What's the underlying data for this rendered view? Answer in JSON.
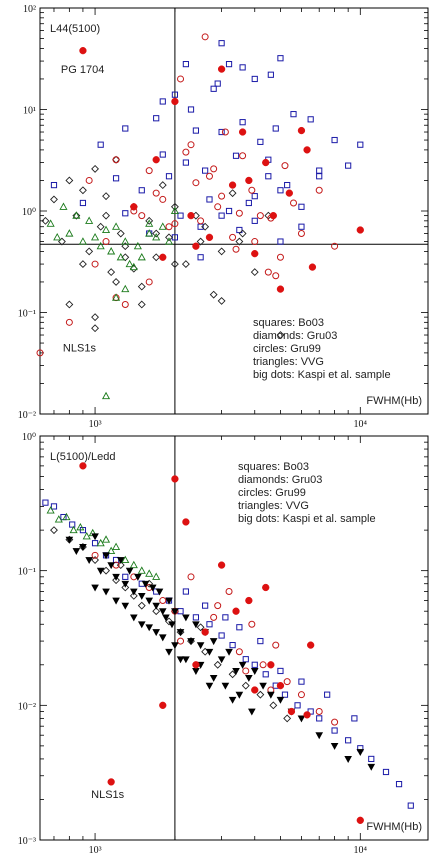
{
  "chart_data": [
    {
      "type": "scatter",
      "title": "",
      "panel_label": "L44(5100)",
      "xlabel": "FWHM(Hb)",
      "ylabel": "",
      "x_scale": "log",
      "y_scale": "log",
      "xlim": [
        620,
        18000
      ],
      "ylim": [
        0.01,
        100
      ],
      "x_ticks": [
        1000,
        10000
      ],
      "x_tick_labels": [
        "10³",
        "10⁴"
      ],
      "y_ticks": [
        0.01,
        0.1,
        1,
        10,
        100
      ],
      "y_tick_labels": [
        "10⁻²",
        "10⁻¹",
        "10⁰",
        "10¹",
        "10²"
      ],
      "grid": false,
      "reference_lines": {
        "x": 2000,
        "y": 0.47
      },
      "annotations": [
        {
          "text": "PG 1704",
          "x": 900,
          "y": 25
        },
        {
          "text": "NLS1s",
          "x": 900,
          "y": 0.045
        }
      ],
      "legend": [
        "squares: Bo03",
        "diamonds: Gru03",
        "circles: Gru99",
        "triangles: VVG",
        "big dots: Kaspi et al. sample"
      ],
      "series": [
        {
          "name": "squares: Bo03",
          "marker": "square",
          "color": "#1a1aa8",
          "x": [
            700,
            900,
            1050,
            1200,
            1300,
            1500,
            1700,
            1800,
            1900,
            2000,
            2100,
            2200,
            2300,
            2400,
            2500,
            2600,
            2700,
            2900,
            3000,
            3200,
            3400,
            3600,
            3800,
            4000,
            4200,
            4500,
            4800,
            5000,
            5300,
            5600,
            6000,
            6500,
            7000,
            8000,
            9000,
            10000,
            1300,
            1600,
            2000,
            2500,
            3000,
            3500,
            4000,
            4500,
            5000,
            6000,
            7000,
            3000,
            3200,
            4000,
            5000,
            2200,
            2800,
            3600,
            4600,
            1800
          ],
          "y": [
            1.8,
            1.2,
            4.5,
            2.1,
            6.5,
            1.6,
            8.2,
            3.6,
            2.2,
            14,
            0.9,
            3.0,
            10,
            6.2,
            0.7,
            2.5,
            1.3,
            18,
            6,
            1.0,
            3.5,
            7.5,
            1.2,
            0.8,
            4.8,
            2.2,
            6.5,
            0.5,
            1.8,
            9,
            1.1,
            8,
            2.5,
            5,
            2.8,
            4.5,
            0.95,
            0.6,
            0.55,
            0.35,
            0.9,
            0.65,
            1.4,
            3.2,
            1.6,
            0.7,
            2.2,
            45,
            28,
            20,
            32,
            28,
            16,
            26,
            22,
            12
          ]
        },
        {
          "name": "diamonds: Gru03",
          "marker": "diamond",
          "color": "#222222",
          "x": [
            650,
            700,
            750,
            800,
            850,
            900,
            950,
            1000,
            1050,
            1100,
            1150,
            1200,
            1250,
            1300,
            1400,
            1500,
            1600,
            1700,
            1800,
            1900,
            2000,
            2200,
            2400,
            2600,
            2800,
            3000,
            3300,
            3600,
            4000,
            4500,
            5000,
            800,
            900,
            1000,
            1100,
            1200,
            1300,
            1500,
            1700,
            2000,
            2500,
            3000,
            3500,
            1000,
            1400
          ],
          "y": [
            0.8,
            1.3,
            0.5,
            2.0,
            0.9,
            1.6,
            0.4,
            2.6,
            0.7,
            1.4,
            0.25,
            3.2,
            0.6,
            0.45,
            1.1,
            0.18,
            0.8,
            0.35,
            1.8,
            0.55,
            1.1,
            0.3,
            0.9,
            0.7,
            0.15,
            0.4,
            1.5,
            0.6,
            0.25,
            0.9,
            0.06,
            0.12,
            0.3,
            0.07,
            0.9,
            0.2,
            0.35,
            0.12,
            0.6,
            0.3,
            0.5,
            0.13,
            0.5,
            0.09,
            0.27
          ]
        },
        {
          "name": "circles: Gru99",
          "marker": "circle",
          "color": "#c41a1a",
          "x": [
            620,
            800,
            950,
            1100,
            1200,
            1300,
            1500,
            1600,
            1700,
            1900,
            2100,
            2300,
            2500,
            2700,
            2900,
            3100,
            3300,
            3600,
            3900,
            4200,
            4500,
            4800,
            5200,
            5600,
            6000,
            7000,
            8000,
            1400,
            1800,
            2000,
            2400,
            3000,
            3500,
            4000,
            5000,
            1200,
            1600,
            2200,
            2800,
            3400,
            2600,
            1000,
            4600
          ],
          "y": [
            0.04,
            0.08,
            2.0,
            0.5,
            3.2,
            0.12,
            0.9,
            2.5,
            1.5,
            0.7,
            20,
            4.5,
            0.8,
            2.2,
            1.1,
            6.0,
            0.55,
            3.5,
            1.6,
            0.9,
            0.25,
            0.23,
            2.8,
            1.2,
            0.6,
            1.6,
            0.45,
            1.0,
            1.3,
            0.75,
            1.9,
            1.4,
            0.95,
            0.5,
            0.35,
            0.14,
            0.2,
            3.8,
            2.6,
            0.42,
            52,
            0.3,
            0.85
          ]
        },
        {
          "name": "triangles: VVG",
          "marker": "triangle",
          "color": "#1a7a1a",
          "x": [
            680,
            720,
            760,
            800,
            850,
            900,
            950,
            1000,
            1050,
            1100,
            1150,
            1200,
            1250,
            1300,
            1350,
            1400,
            1450,
            1500,
            1600,
            1700,
            1800,
            1900,
            2000,
            1100,
            1200,
            1300,
            1600
          ],
          "y": [
            0.75,
            0.55,
            1.1,
            0.6,
            0.9,
            0.5,
            0.8,
            0.55,
            0.45,
            0.65,
            0.4,
            0.7,
            0.35,
            0.5,
            0.3,
            0.28,
            0.45,
            0.35,
            0.6,
            0.55,
            0.7,
            0.5,
            1.0,
            0.015,
            0.14,
            0.17,
            0.75
          ]
        },
        {
          "name": "big dots: Kaspi et al. sample",
          "marker": "dot",
          "color": "#dd1111",
          "x": [
            900,
            1400,
            1700,
            2000,
            2300,
            2700,
            3000,
            3300,
            3600,
            4000,
            4400,
            5000,
            5400,
            6000,
            6600,
            10000,
            2400,
            3800,
            4700,
            6300,
            1800
          ],
          "y": [
            38,
            1.1,
            3.2,
            12,
            0.9,
            0.55,
            25,
            1.8,
            6.0,
            0.38,
            3.0,
            0.17,
            1.5,
            6.2,
            0.28,
            0.65,
            0.45,
            2.0,
            0.9,
            4.0,
            0.35
          ]
        }
      ]
    },
    {
      "type": "scatter",
      "title": "",
      "panel_label": "L(5100)/Ledd",
      "xlabel": "FWHM(Hb)",
      "ylabel": "",
      "x_scale": "log",
      "y_scale": "log",
      "xlim": [
        620,
        18000
      ],
      "ylim": [
        0.001,
        1
      ],
      "x_ticks": [
        1000,
        10000
      ],
      "x_tick_labels": [
        "10³",
        "10⁴"
      ],
      "y_ticks": [
        0.001,
        0.01,
        0.1,
        1
      ],
      "y_tick_labels": [
        "10⁻³",
        "10⁻²",
        "10⁻¹",
        "10⁰"
      ],
      "grid": false,
      "reference_lines": {
        "x": 2000
      },
      "annotations": [
        {
          "text": "NLS1s",
          "x": 1150,
          "y": 0.0022
        }
      ],
      "legend": [
        "squares: Bo03",
        "diamonds: Gru03",
        "circles: Gru99",
        "triangles: VVG",
        "big dots: Kaspi et al. sample"
      ],
      "series": [
        {
          "name": "squares: Bo03",
          "marker": "square",
          "color": "#1a1aa8",
          "x": [
            650,
            700,
            760,
            820,
            900,
            1000,
            1100,
            1200,
            1300,
            1500,
            1700,
            1900,
            2100,
            2400,
            2700,
            3000,
            3300,
            3700,
            4000,
            4400,
            4800,
            5200,
            5800,
            6500,
            7000,
            8000,
            9000,
            10000,
            11000,
            12500,
            14000,
            15500,
            2200,
            2600,
            3100,
            3500,
            4200,
            5000,
            6000,
            7500,
            9500
          ],
          "y": [
            0.32,
            0.3,
            0.25,
            0.22,
            0.2,
            0.16,
            0.13,
            0.12,
            0.09,
            0.08,
            0.07,
            0.06,
            0.05,
            0.045,
            0.04,
            0.033,
            0.028,
            0.022,
            0.02,
            0.017,
            0.014,
            0.012,
            0.01,
            0.009,
            0.008,
            0.0065,
            0.0055,
            0.0048,
            0.004,
            0.0032,
            0.0026,
            0.0018,
            0.07,
            0.055,
            0.045,
            0.038,
            0.03,
            0.018,
            0.015,
            0.012,
            0.008
          ]
        },
        {
          "name": "diamonds: Gru03",
          "marker": "diamond",
          "color": "#222222",
          "x": [
            700,
            800,
            900,
            1000,
            1100,
            1200,
            1300,
            1400,
            1500,
            1700,
            1900,
            2100,
            2300,
            2600,
            2900,
            3300,
            3700,
            4200,
            4700,
            5300,
            1250,
            1600,
            2000,
            2500
          ],
          "y": [
            0.2,
            0.17,
            0.15,
            0.12,
            0.1,
            0.085,
            0.075,
            0.065,
            0.055,
            0.05,
            0.042,
            0.035,
            0.03,
            0.025,
            0.02,
            0.017,
            0.014,
            0.012,
            0.01,
            0.008,
            0.11,
            0.08,
            0.05,
            0.038
          ]
        },
        {
          "name": "circles: Gru99",
          "marker": "circle",
          "color": "#c41a1a",
          "x": [
            1000,
            1200,
            1400,
            1600,
            1800,
            2000,
            2300,
            2600,
            2900,
            3200,
            3500,
            3900,
            4300,
            4800,
            5300,
            6000,
            7000,
            8000,
            2100,
            2800,
            3700,
            4600
          ],
          "y": [
            0.13,
            0.11,
            0.09,
            0.075,
            0.06,
            0.05,
            0.09,
            0.035,
            0.055,
            0.07,
            0.025,
            0.04,
            0.02,
            0.028,
            0.015,
            0.012,
            0.009,
            0.0075,
            0.03,
            0.045,
            0.018,
            0.013
          ]
        },
        {
          "name": "triangles: VVG",
          "marker": "triangle",
          "color": "#1a7a1a",
          "x": [
            680,
            730,
            780,
            830,
            880,
            930,
            980,
            1050,
            1100,
            1150,
            1200,
            1300,
            1400,
            1500,
            1600,
            1700
          ],
          "y": [
            0.28,
            0.24,
            0.25,
            0.2,
            0.21,
            0.18,
            0.19,
            0.16,
            0.17,
            0.14,
            0.15,
            0.12,
            0.11,
            0.1,
            0.095,
            0.09
          ]
        },
        {
          "name": "",
          "marker": "down-triangle",
          "color": "#000000",
          "x": [
            800,
            850,
            900,
            950,
            1000,
            1050,
            1100,
            1150,
            1200,
            1250,
            1300,
            1350,
            1400,
            1450,
            1500,
            1550,
            1600,
            1650,
            1700,
            1750,
            1800,
            1850,
            1900,
            1950,
            2000,
            2100,
            2200,
            2300,
            2400,
            2500,
            2600,
            2700,
            2800,
            3000,
            3200,
            3400,
            3600,
            3800,
            4000,
            4300,
            4600,
            5000,
            5500,
            6000,
            7000,
            8000,
            9000,
            10000,
            11000,
            1000,
            1200,
            1400,
            1600,
            1800,
            2000,
            2200,
            2500,
            2800,
            3100,
            3500,
            1100,
            1300,
            1500,
            1700,
            1900,
            2100,
            2400,
            2700,
            3300,
            3900
          ],
          "y": [
            0.17,
            0.14,
            0.15,
            0.12,
            0.18,
            0.1,
            0.13,
            0.11,
            0.09,
            0.12,
            0.08,
            0.1,
            0.07,
            0.09,
            0.065,
            0.08,
            0.06,
            0.075,
            0.055,
            0.07,
            0.05,
            0.045,
            0.06,
            0.04,
            0.05,
            0.035,
            0.045,
            0.03,
            0.04,
            0.028,
            0.035,
            0.025,
            0.03,
            0.022,
            0.025,
            0.018,
            0.02,
            0.016,
            0.018,
            0.014,
            0.012,
            0.011,
            0.009,
            0.008,
            0.006,
            0.005,
            0.004,
            0.0045,
            0.0035,
            0.075,
            0.06,
            0.045,
            0.038,
            0.032,
            0.028,
            0.022,
            0.02,
            0.016,
            0.014,
            0.012,
            0.07,
            0.055,
            0.04,
            0.035,
            0.025,
            0.022,
            0.018,
            0.014,
            0.011,
            0.009
          ]
        },
        {
          "name": "big dots: Kaspi et al. sample",
          "marker": "dot",
          "color": "#dd1111",
          "x": [
            900,
            1150,
            2000,
            2200,
            3000,
            3400,
            4000,
            4600,
            5500,
            6500,
            6300,
            2600,
            3800,
            5000,
            4400,
            2400,
            1800,
            10000
          ],
          "y": [
            0.6,
            0.0027,
            0.48,
            0.23,
            0.11,
            0.05,
            0.013,
            0.02,
            0.009,
            0.028,
            0.0085,
            0.035,
            0.06,
            0.014,
            0.075,
            0.02,
            0.01,
            0.0014
          ]
        }
      ]
    }
  ]
}
